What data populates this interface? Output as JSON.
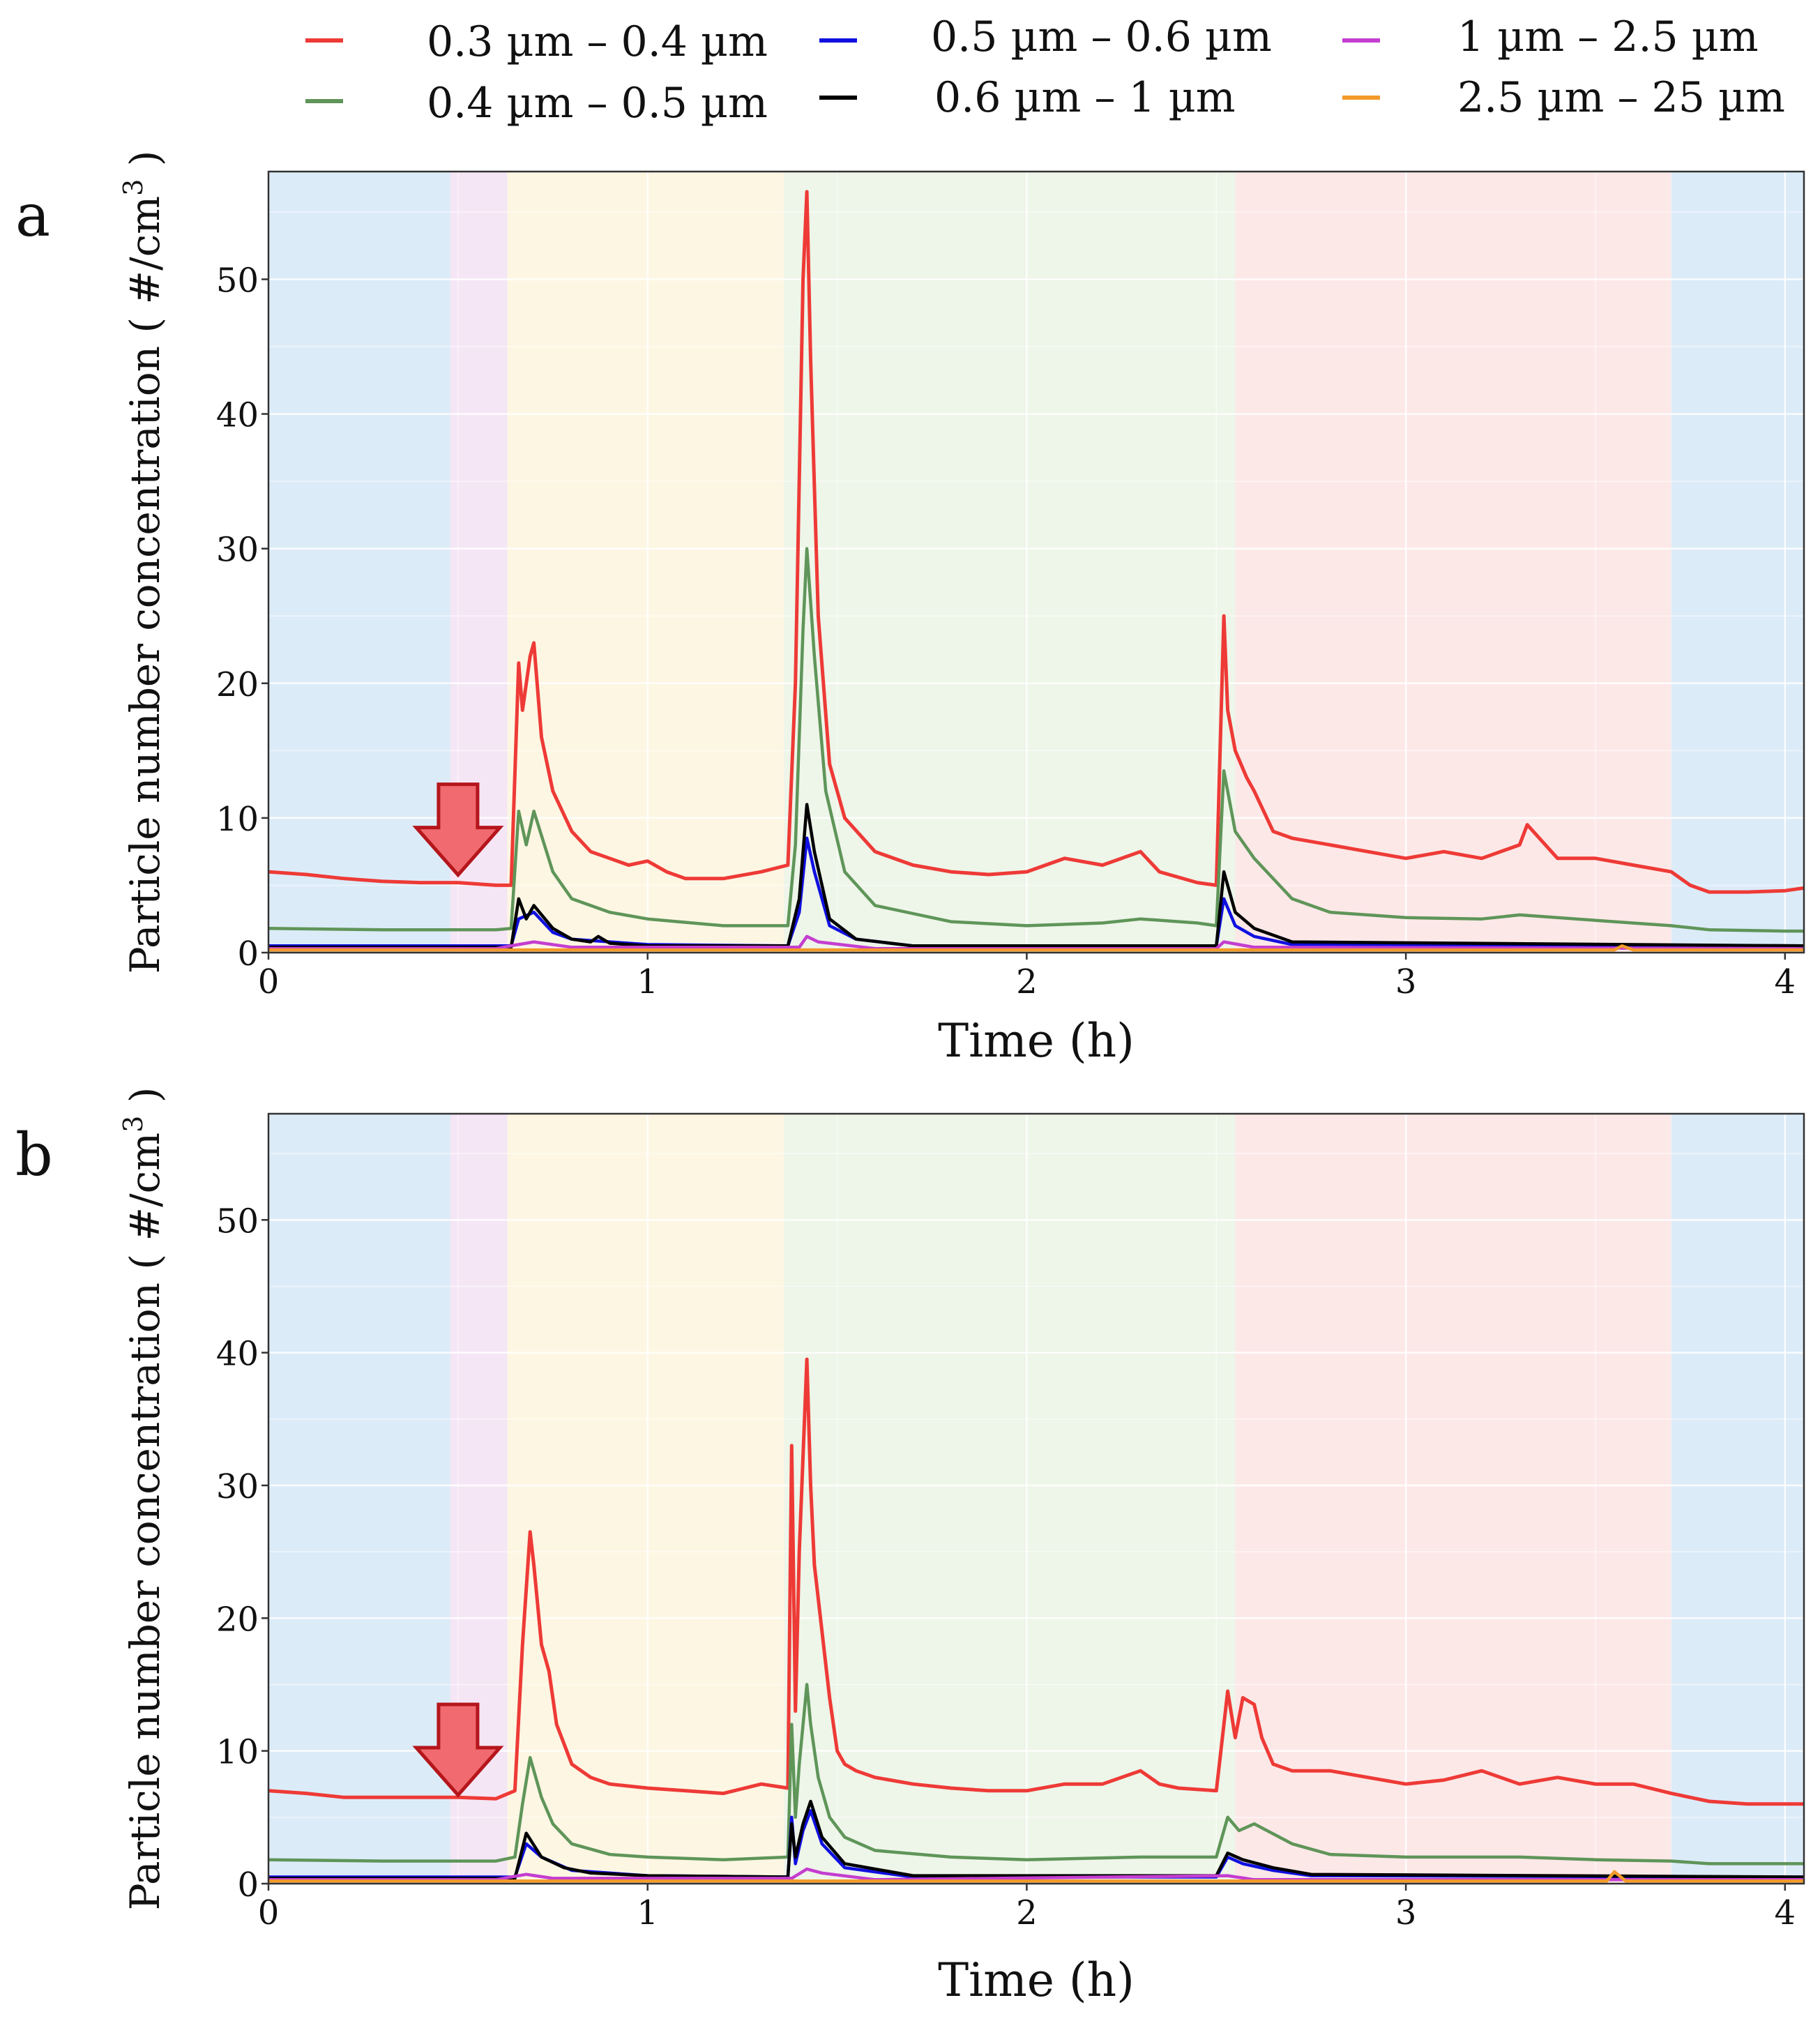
{
  "legend": [
    {
      "label": "0.3 µm – 0.4 µm",
      "color": "#ee3a36"
    },
    {
      "label": "0.4 µm – 0.5 µm",
      "color": "#5f9559"
    },
    {
      "label": "0.5 µm – 0.6 µm",
      "color": "#1010e0"
    },
    {
      "label": "0.6 µm – 1 µm",
      "color": "#000000"
    },
    {
      "label": "1 µm – 2.5 µm",
      "color": "#c43ed0"
    },
    {
      "label": "2.5 µm – 25 µm",
      "color": "#f39a2a"
    }
  ],
  "chart_data": [
    {
      "panel_label": "a",
      "type": "line",
      "xlabel": "Time (h)",
      "ylabel": "Particle number concentration ( #/cm",
      "ylabel_sup": "3",
      "ylabel_close": " )",
      "xlim": [
        0,
        4.05
      ],
      "ylim": [
        0,
        58
      ],
      "xticks": [
        0,
        1,
        2,
        3,
        4
      ],
      "xtick_labels": [
        "0",
        "1",
        "2",
        "3",
        "4"
      ],
      "yticks": [
        0,
        10,
        20,
        30,
        40,
        50
      ],
      "ytick_labels": [
        "0",
        "10",
        "20",
        "30",
        "40",
        "50"
      ],
      "grid": true,
      "shaded_periods": [
        {
          "x0": 0.0,
          "x1": 0.48,
          "color": "#dcebf8"
        },
        {
          "x0": 0.48,
          "x1": 0.63,
          "color": "#f5e6f5"
        },
        {
          "x0": 0.63,
          "x1": 1.36,
          "color": "#fdf6e3"
        },
        {
          "x0": 1.36,
          "x1": 2.55,
          "color": "#eef5e9"
        },
        {
          "x0": 2.55,
          "x1": 3.7,
          "color": "#fde8e8"
        },
        {
          "x0": 3.7,
          "x1": 4.05,
          "color": "#dcebf8"
        }
      ],
      "annotation": {
        "type": "arrow-down",
        "x": 0.5,
        "y": 12.5,
        "color": "#f06a6f"
      },
      "series": [
        {
          "name": "0.3 µm – 0.4 µm",
          "color": "#ee3a36",
          "x": [
            0,
            0.1,
            0.2,
            0.3,
            0.4,
            0.5,
            0.6,
            0.64,
            0.66,
            0.67,
            0.69,
            0.7,
            0.72,
            0.75,
            0.8,
            0.85,
            0.9,
            0.95,
            1.0,
            1.05,
            1.1,
            1.2,
            1.3,
            1.37,
            1.39,
            1.41,
            1.42,
            1.43,
            1.45,
            1.48,
            1.52,
            1.6,
            1.7,
            1.8,
            1.9,
            2.0,
            2.1,
            2.2,
            2.3,
            2.35,
            2.45,
            2.5,
            2.52,
            2.53,
            2.55,
            2.58,
            2.6,
            2.65,
            2.7,
            2.8,
            2.9,
            3.0,
            3.1,
            3.2,
            3.3,
            3.32,
            3.4,
            3.5,
            3.6,
            3.7,
            3.75,
            3.8,
            3.9,
            4.0,
            4.05
          ],
          "y": [
            6.0,
            5.8,
            5.5,
            5.3,
            5.2,
            5.2,
            5.0,
            5.0,
            21.5,
            18.0,
            22.0,
            23.0,
            16.0,
            12.0,
            9.0,
            7.5,
            7.0,
            6.5,
            6.8,
            6.0,
            5.5,
            5.5,
            6.0,
            6.5,
            20.0,
            50.0,
            56.5,
            44.0,
            25.0,
            14.0,
            10.0,
            7.5,
            6.5,
            6.0,
            5.8,
            6.0,
            7.0,
            6.5,
            7.5,
            6.0,
            5.2,
            5.0,
            25.0,
            18.0,
            15.0,
            13.0,
            12.0,
            9.0,
            8.5,
            8.0,
            7.5,
            7.0,
            7.5,
            7.0,
            8.0,
            9.5,
            7.0,
            7.0,
            6.5,
            6.0,
            5.0,
            4.5,
            4.5,
            4.6,
            4.8
          ]
        },
        {
          "name": "0.4 µm – 0.5 µm",
          "color": "#5f9559",
          "x": [
            0,
            0.3,
            0.6,
            0.64,
            0.66,
            0.68,
            0.7,
            0.75,
            0.8,
            0.9,
            1.0,
            1.2,
            1.37,
            1.39,
            1.41,
            1.42,
            1.44,
            1.47,
            1.52,
            1.6,
            1.8,
            2.0,
            2.2,
            2.3,
            2.45,
            2.5,
            2.52,
            2.55,
            2.6,
            2.7,
            2.8,
            3.0,
            3.2,
            3.3,
            3.5,
            3.7,
            3.8,
            4.0,
            4.05
          ],
          "y": [
            1.8,
            1.7,
            1.7,
            1.8,
            10.5,
            8.0,
            10.5,
            6.0,
            4.0,
            3.0,
            2.5,
            2.0,
            2.0,
            8.0,
            24.0,
            30.0,
            22.0,
            12.0,
            6.0,
            3.5,
            2.3,
            2.0,
            2.2,
            2.5,
            2.2,
            2.0,
            13.5,
            9.0,
            7.0,
            4.0,
            3.0,
            2.6,
            2.5,
            2.8,
            2.4,
            2.0,
            1.7,
            1.6,
            1.6
          ]
        },
        {
          "name": "0.5 µm – 0.6 µm",
          "color": "#1010e0",
          "x": [
            0,
            0.6,
            0.64,
            0.66,
            0.7,
            0.75,
            0.8,
            1.0,
            1.37,
            1.4,
            1.42,
            1.44,
            1.48,
            1.55,
            1.7,
            2.5,
            2.52,
            2.55,
            2.6,
            2.7,
            4.05
          ],
          "y": [
            0.5,
            0.5,
            0.5,
            2.5,
            3.0,
            1.5,
            1.0,
            0.6,
            0.5,
            3.0,
            8.5,
            6.0,
            2.0,
            1.0,
            0.5,
            0.5,
            4.0,
            2.0,
            1.2,
            0.6,
            0.5
          ]
        },
        {
          "name": "0.6 µm – 1 µm",
          "color": "#000000",
          "x": [
            0,
            0.6,
            0.64,
            0.66,
            0.68,
            0.7,
            0.75,
            0.8,
            0.85,
            0.87,
            0.9,
            1.0,
            1.37,
            1.4,
            1.42,
            1.44,
            1.48,
            1.55,
            1.7,
            2.5,
            2.52,
            2.55,
            2.6,
            2.7,
            4.05
          ],
          "y": [
            0.4,
            0.4,
            0.4,
            4.0,
            2.5,
            3.5,
            1.8,
            1.0,
            0.8,
            1.2,
            0.7,
            0.5,
            0.5,
            4.0,
            11.0,
            7.5,
            2.5,
            1.0,
            0.5,
            0.5,
            6.0,
            3.0,
            1.8,
            0.8,
            0.5
          ]
        },
        {
          "name": "1 µm – 2.5 µm",
          "color": "#c43ed0",
          "x": [
            0,
            0.6,
            0.66,
            0.7,
            0.8,
            1.4,
            1.42,
            1.45,
            1.6,
            2.5,
            2.52,
            2.6,
            4.05
          ],
          "y": [
            0.3,
            0.3,
            0.6,
            0.8,
            0.4,
            0.4,
            1.2,
            0.8,
            0.3,
            0.3,
            0.8,
            0.4,
            0.3
          ]
        },
        {
          "name": "2.5 µm – 25 µm",
          "color": "#f39a2a",
          "x": [
            0,
            1.0,
            2.0,
            3.0,
            3.55,
            3.57,
            3.6,
            4.05
          ],
          "y": [
            0.2,
            0.2,
            0.2,
            0.2,
            0.2,
            0.5,
            0.2,
            0.2
          ]
        }
      ]
    },
    {
      "panel_label": "b",
      "type": "line",
      "xlabel": "Time (h)",
      "ylabel": "Particle number concentration ( #/cm",
      "ylabel_sup": "3",
      "ylabel_close": " )",
      "xlim": [
        0,
        4.05
      ],
      "ylim": [
        0,
        58
      ],
      "xticks": [
        0,
        1,
        2,
        3,
        4
      ],
      "xtick_labels": [
        "0",
        "1",
        "2",
        "3",
        "4"
      ],
      "yticks": [
        0,
        10,
        20,
        30,
        40,
        50
      ],
      "ytick_labels": [
        "0",
        "10",
        "20",
        "30",
        "40",
        "50"
      ],
      "grid": true,
      "shaded_periods": [
        {
          "x0": 0.0,
          "x1": 0.48,
          "color": "#dcebf8"
        },
        {
          "x0": 0.48,
          "x1": 0.63,
          "color": "#f5e6f5"
        },
        {
          "x0": 0.63,
          "x1": 1.36,
          "color": "#fdf6e3"
        },
        {
          "x0": 1.36,
          "x1": 2.55,
          "color": "#eef5e9"
        },
        {
          "x0": 2.55,
          "x1": 3.7,
          "color": "#fde8e8"
        },
        {
          "x0": 3.7,
          "x1": 4.05,
          "color": "#dcebf8"
        }
      ],
      "annotation": {
        "type": "arrow-down",
        "x": 0.5,
        "y": 13.5,
        "color": "#f06a6f"
      },
      "series": [
        {
          "name": "0.3 µm – 0.4 µm",
          "color": "#ee3a36",
          "x": [
            0,
            0.1,
            0.2,
            0.3,
            0.4,
            0.5,
            0.6,
            0.65,
            0.67,
            0.69,
            0.7,
            0.72,
            0.74,
            0.76,
            0.8,
            0.85,
            0.9,
            1.0,
            1.1,
            1.2,
            1.3,
            1.37,
            1.38,
            1.39,
            1.4,
            1.42,
            1.43,
            1.44,
            1.46,
            1.48,
            1.5,
            1.52,
            1.55,
            1.6,
            1.7,
            1.8,
            1.9,
            2.0,
            2.1,
            2.2,
            2.3,
            2.35,
            2.4,
            2.5,
            2.53,
            2.55,
            2.57,
            2.6,
            2.62,
            2.65,
            2.7,
            2.8,
            2.9,
            3.0,
            3.1,
            3.2,
            3.3,
            3.4,
            3.5,
            3.6,
            3.7,
            3.75,
            3.8,
            3.9,
            4.0,
            4.05
          ],
          "y": [
            7.0,
            6.8,
            6.5,
            6.5,
            6.5,
            6.5,
            6.4,
            7.0,
            18.0,
            26.5,
            24.0,
            18.0,
            16.0,
            12.0,
            9.0,
            8.0,
            7.5,
            7.2,
            7.0,
            6.8,
            7.5,
            7.2,
            33.0,
            13.0,
            25.0,
            39.5,
            30.0,
            24.0,
            19.0,
            14.0,
            10.0,
            9.0,
            8.5,
            8.0,
            7.5,
            7.2,
            7.0,
            7.0,
            7.5,
            7.5,
            8.5,
            7.5,
            7.2,
            7.0,
            14.5,
            11.0,
            14.0,
            13.5,
            11.0,
            9.0,
            8.5,
            8.5,
            8.0,
            7.5,
            7.8,
            8.5,
            7.5,
            8.0,
            7.5,
            7.5,
            6.8,
            6.5,
            6.2,
            6.0,
            6.0,
            6.0
          ]
        },
        {
          "name": "0.4 µm – 0.5 µm",
          "color": "#5f9559",
          "x": [
            0,
            0.3,
            0.6,
            0.65,
            0.67,
            0.69,
            0.72,
            0.75,
            0.8,
            0.9,
            1.0,
            1.2,
            1.37,
            1.38,
            1.39,
            1.4,
            1.42,
            1.43,
            1.45,
            1.48,
            1.52,
            1.6,
            1.8,
            2.0,
            2.3,
            2.5,
            2.53,
            2.56,
            2.6,
            2.7,
            2.8,
            3.0,
            3.3,
            3.5,
            3.7,
            3.8,
            4.0,
            4.05
          ],
          "y": [
            1.8,
            1.7,
            1.7,
            2.0,
            6.0,
            9.5,
            6.5,
            4.5,
            3.0,
            2.2,
            2.0,
            1.8,
            2.0,
            12.0,
            5.0,
            9.0,
            15.0,
            12.0,
            8.0,
            5.0,
            3.5,
            2.5,
            2.0,
            1.8,
            2.0,
            2.0,
            5.0,
            4.0,
            4.5,
            3.0,
            2.2,
            2.0,
            2.0,
            1.8,
            1.7,
            1.5,
            1.5,
            1.5
          ]
        },
        {
          "name": "0.5 µm – 0.6 µm",
          "color": "#1010e0",
          "x": [
            0,
            0.6,
            0.65,
            0.68,
            0.72,
            0.8,
            1.0,
            1.37,
            1.38,
            1.39,
            1.41,
            1.43,
            1.46,
            1.52,
            1.7,
            2.5,
            2.53,
            2.57,
            2.65,
            2.75,
            4.05
          ],
          "y": [
            0.5,
            0.5,
            0.5,
            3.0,
            2.0,
            1.0,
            0.6,
            0.5,
            5.0,
            1.5,
            4.0,
            5.5,
            3.0,
            1.2,
            0.5,
            0.5,
            2.0,
            1.5,
            1.0,
            0.6,
            0.5
          ]
        },
        {
          "name": "0.6 µm – 1 µm",
          "color": "#000000",
          "x": [
            0,
            0.6,
            0.65,
            0.68,
            0.72,
            0.78,
            0.85,
            1.0,
            1.37,
            1.38,
            1.39,
            1.41,
            1.43,
            1.46,
            1.52,
            1.7,
            2.5,
            2.53,
            2.57,
            2.65,
            2.75,
            4.05
          ],
          "y": [
            0.4,
            0.4,
            0.4,
            3.8,
            2.0,
            1.2,
            0.8,
            0.6,
            0.5,
            4.5,
            2.0,
            4.5,
            6.2,
            3.5,
            1.5,
            0.6,
            0.6,
            2.3,
            1.8,
            1.2,
            0.7,
            0.5
          ]
        },
        {
          "name": "1 µm – 2.5 µm",
          "color": "#c43ed0",
          "x": [
            0,
            0.6,
            0.68,
            0.75,
            1.38,
            1.42,
            1.46,
            1.6,
            2.53,
            2.6,
            4.05
          ],
          "y": [
            0.3,
            0.3,
            0.7,
            0.4,
            0.4,
            1.1,
            0.8,
            0.3,
            0.6,
            0.3,
            0.3
          ]
        },
        {
          "name": "2.5 µm – 25 µm",
          "color": "#f39a2a",
          "x": [
            0,
            1.0,
            2.0,
            3.0,
            3.53,
            3.55,
            3.58,
            4.05
          ],
          "y": [
            0.2,
            0.2,
            0.2,
            0.2,
            0.2,
            0.9,
            0.2,
            0.2
          ]
        }
      ]
    }
  ]
}
